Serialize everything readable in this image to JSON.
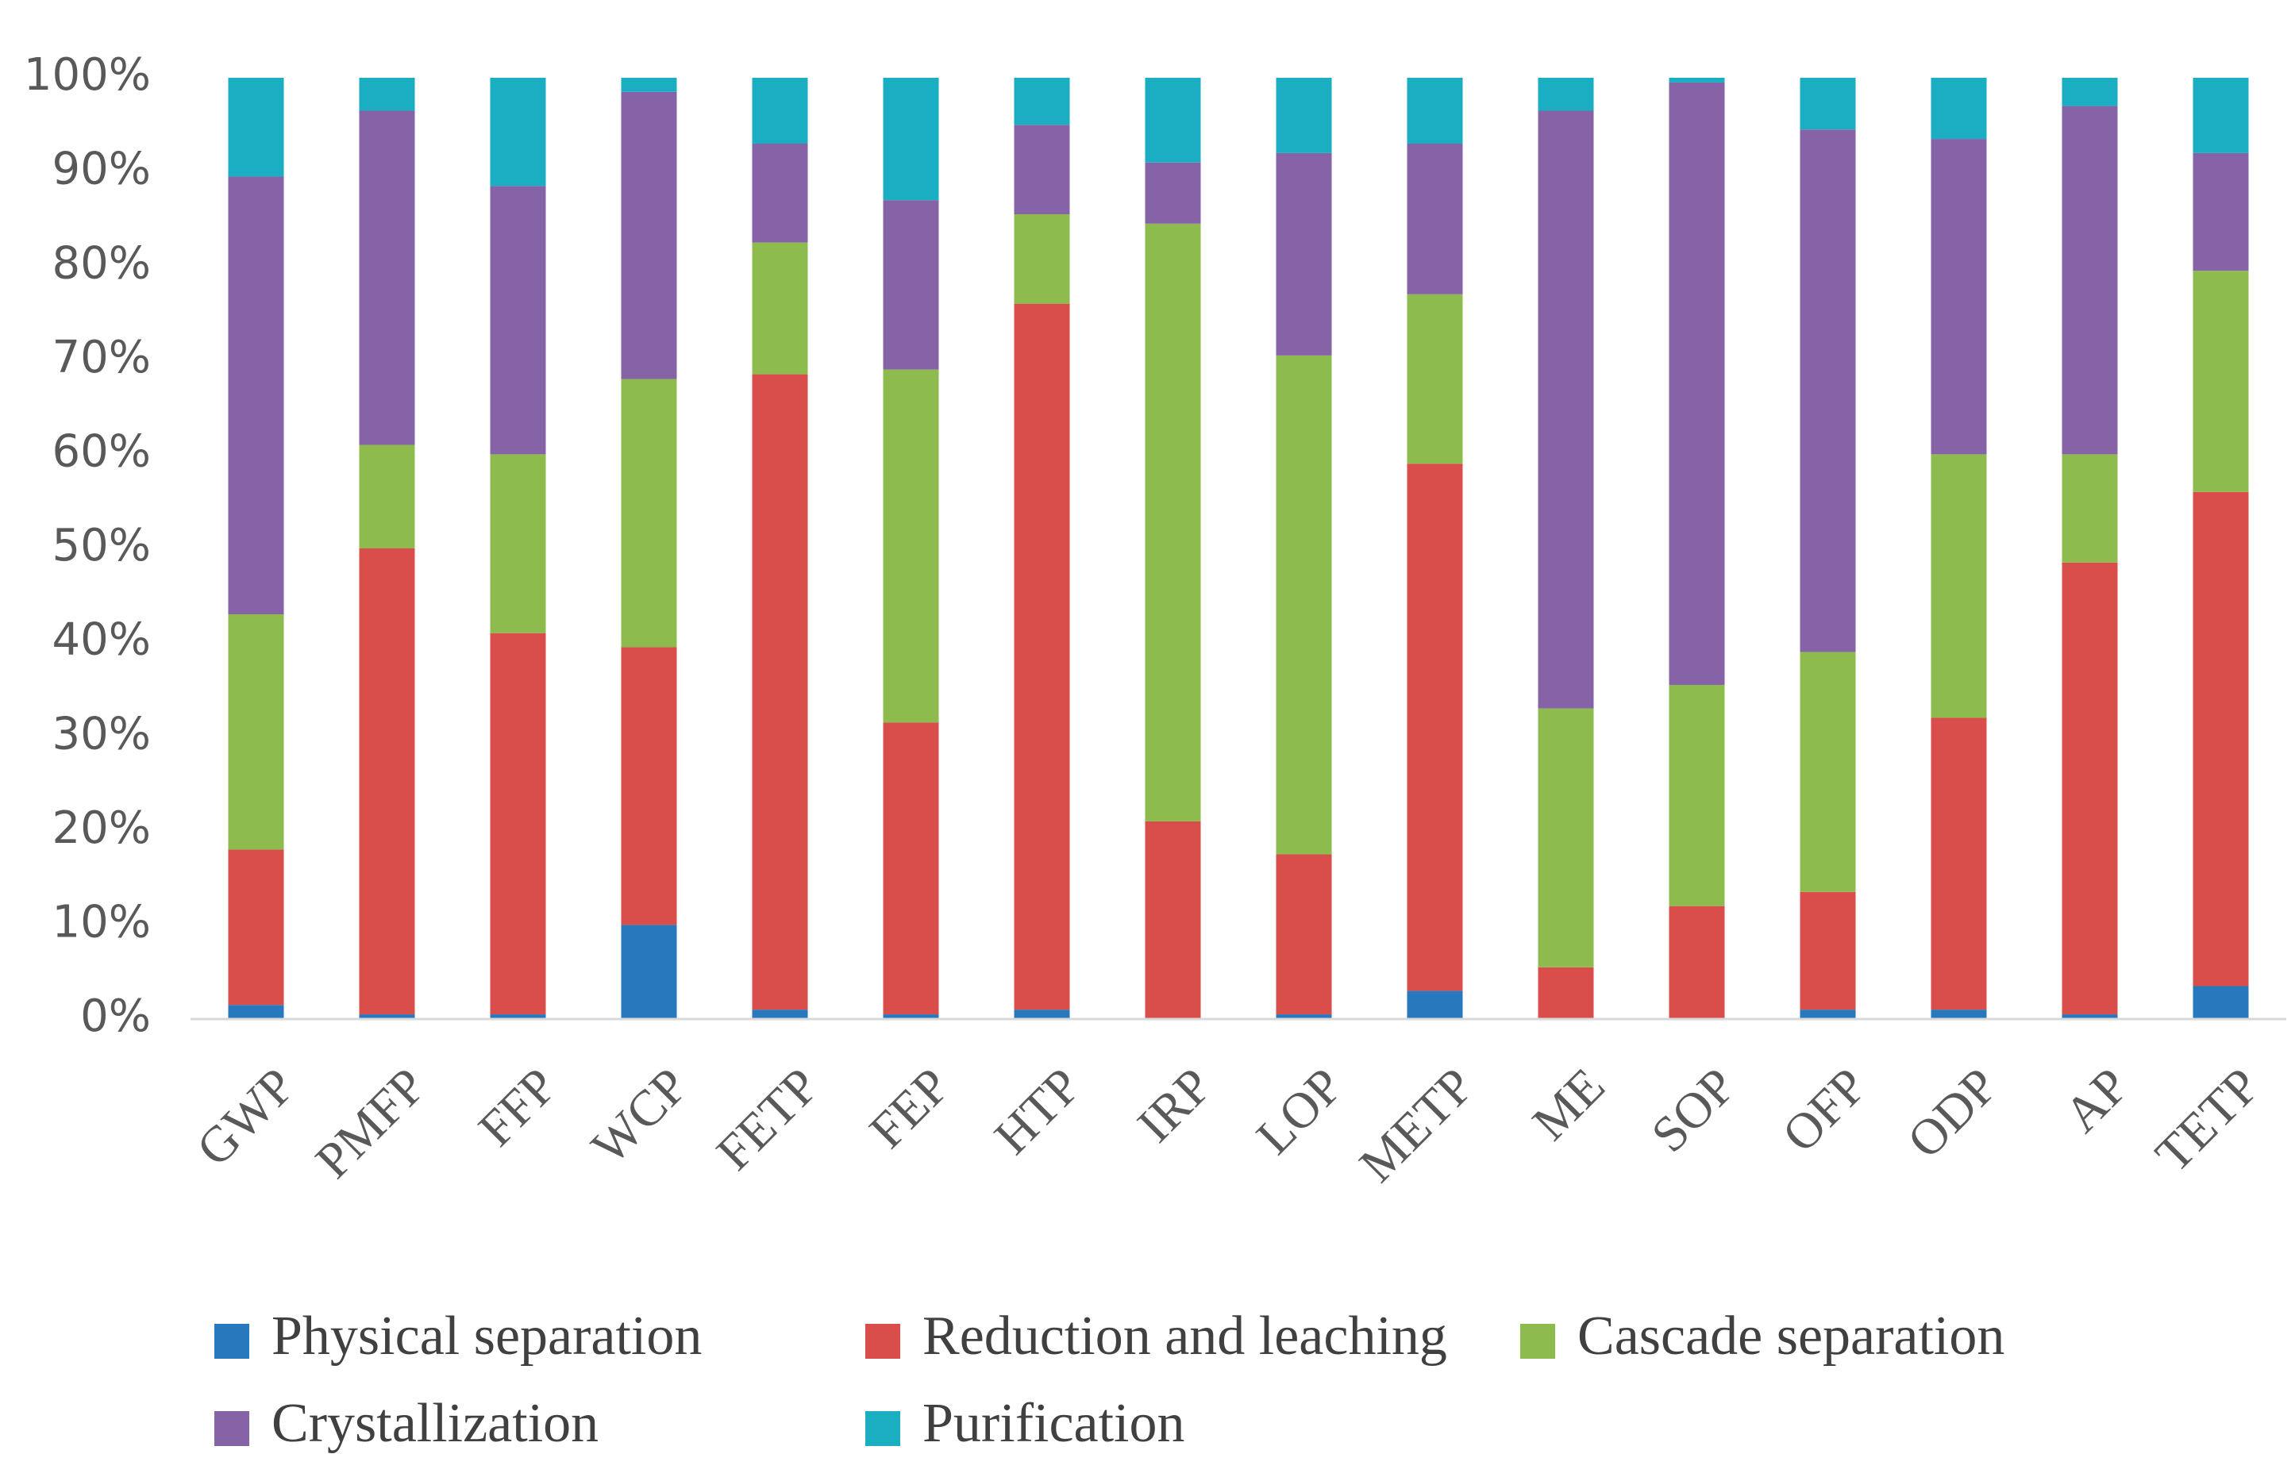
{
  "chart_data": {
    "type": "bar",
    "stacked": true,
    "normalized": true,
    "title": "",
    "xlabel": "",
    "ylabel": "",
    "ylim": [
      0,
      100
    ],
    "y_ticks": [
      "0%",
      "10%",
      "20%",
      "30%",
      "40%",
      "50%",
      "60%",
      "70%",
      "80%",
      "90%",
      "100%"
    ],
    "grid": false,
    "legend_position": "bottom",
    "categories": [
      "GWP",
      "PMFP",
      "FFP",
      "WCP",
      "FETP",
      "FEP",
      "HTP",
      "IRP",
      "LOP",
      "METP",
      "ME",
      "SOP",
      "OFP",
      "ODP",
      "AP",
      "TETP"
    ],
    "series": [
      {
        "name": "Physical separation",
        "color": "#2878BE",
        "values": [
          1.5,
          0.5,
          0.5,
          10,
          1,
          0.5,
          1,
          0,
          0.5,
          3,
          0,
          0,
          1,
          1,
          0.5,
          3.5
        ]
      },
      {
        "name": "Reduction and leaching",
        "color": "#D94E4B",
        "values": [
          16.5,
          49.5,
          40.5,
          29.5,
          67.5,
          31,
          75,
          21,
          17,
          56,
          5.5,
          12,
          12.5,
          31,
          48,
          52.5
        ]
      },
      {
        "name": "Cascade separation",
        "color": "#8EBB4E",
        "values": [
          25,
          11,
          19,
          28.5,
          14,
          37.5,
          9.5,
          63.5,
          53,
          18,
          27.5,
          23.5,
          25.5,
          28,
          11.5,
          23.5
        ]
      },
      {
        "name": "Crystallization",
        "color": "#8663A7",
        "values": [
          46.5,
          35.5,
          28.5,
          30.5,
          10.5,
          18,
          9.5,
          6.5,
          21.5,
          16,
          63.5,
          64,
          55.5,
          33.5,
          37,
          12.5
        ]
      },
      {
        "name": "Purification",
        "color": "#1BAEC3",
        "values": [
          10.5,
          3.5,
          11.5,
          1.5,
          7,
          13,
          5,
          9,
          8,
          7,
          3.5,
          0.5,
          5.5,
          6.5,
          3,
          8
        ]
      }
    ]
  }
}
